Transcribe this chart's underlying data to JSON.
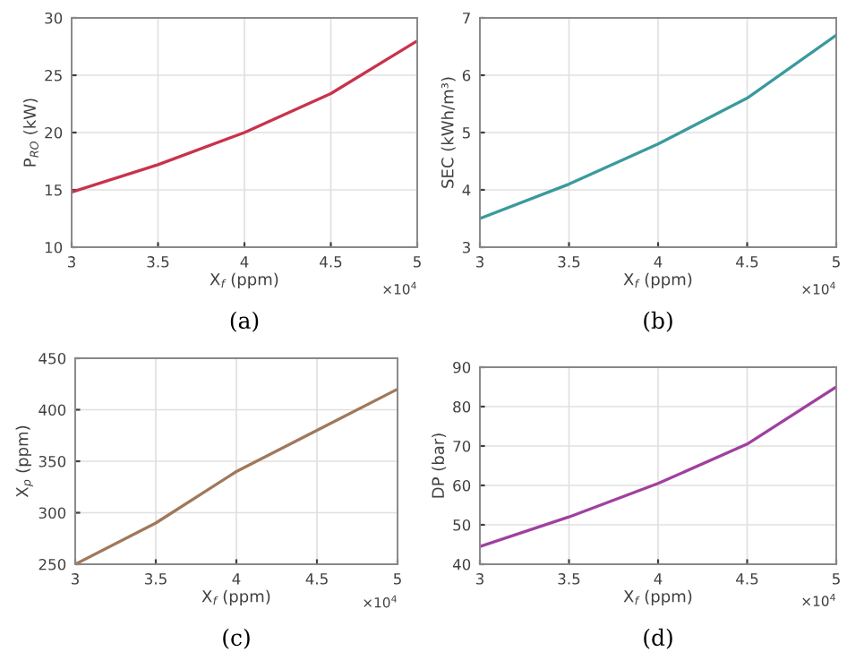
{
  "chart_data": [
    {
      "type": "line",
      "title": "(a)",
      "xlabel": "X$_{f}$ (ppm)",
      "ylabel": "P$_{RO}$ (kW)",
      "x": [
        3,
        3.5,
        4,
        4.5,
        5
      ],
      "series": [
        {
          "color": "#c8334b",
          "values": [
            14.8,
            17.2,
            20.0,
            23.4,
            28.0
          ]
        }
      ],
      "xlim": [
        3,
        5
      ],
      "ylim": [
        10,
        30
      ],
      "xticks": [
        3,
        3.5,
        4,
        4.5,
        5
      ],
      "yticks": [
        10,
        15,
        20,
        25,
        30
      ],
      "grid": true,
      "annotations": [
        "×10$^{4}$"
      ]
    },
    {
      "type": "line",
      "title": "(b)",
      "xlabel": "X$_{f}$ (ppm)",
      "ylabel": "SEC (kWh/m³)",
      "x": [
        3,
        3.5,
        4,
        4.5,
        5
      ],
      "series": [
        {
          "color": "#3a9a9e",
          "values": [
            3.5,
            4.1,
            4.8,
            5.6,
            6.7
          ]
        }
      ],
      "xlim": [
        3,
        5
      ],
      "ylim": [
        3,
        7
      ],
      "xticks": [
        3,
        3.5,
        4,
        4.5,
        5
      ],
      "yticks": [
        3,
        4,
        5,
        6,
        7
      ],
      "grid": true,
      "annotations": [
        "×10$^{4}$"
      ]
    },
    {
      "type": "line",
      "title": "(c)",
      "xlabel": "X$_{f}$ (ppm)",
      "ylabel": "X$_{p}$ (ppm)",
      "x": [
        3,
        3.5,
        4,
        4.5,
        5
      ],
      "series": [
        {
          "color": "#a0785a",
          "values": [
            250,
            290,
            340,
            380,
            420
          ]
        }
      ],
      "xlim": [
        3,
        5
      ],
      "ylim": [
        250,
        450
      ],
      "xticks": [
        3,
        3.5,
        4,
        4.5,
        5
      ],
      "yticks": [
        250,
        300,
        350,
        400,
        450
      ],
      "grid": true,
      "annotations": [
        "×10$^{4}$"
      ]
    },
    {
      "type": "line",
      "title": "(d)",
      "xlabel": "X$_{f}$ (ppm)",
      "ylabel": "DP (bar)",
      "x": [
        3,
        3.5,
        4,
        4.5,
        5
      ],
      "series": [
        {
          "color": "#a040a0",
          "values": [
            44.5,
            52,
            60.5,
            70.5,
            85
          ]
        }
      ],
      "xlim": [
        3,
        5
      ],
      "ylim": [
        40,
        90
      ],
      "xticks": [
        3,
        3.5,
        4,
        4.5,
        5
      ],
      "yticks": [
        40,
        50,
        60,
        70,
        80,
        90
      ],
      "grid": true,
      "annotations": [
        "×10$^{4}$"
      ]
    }
  ]
}
